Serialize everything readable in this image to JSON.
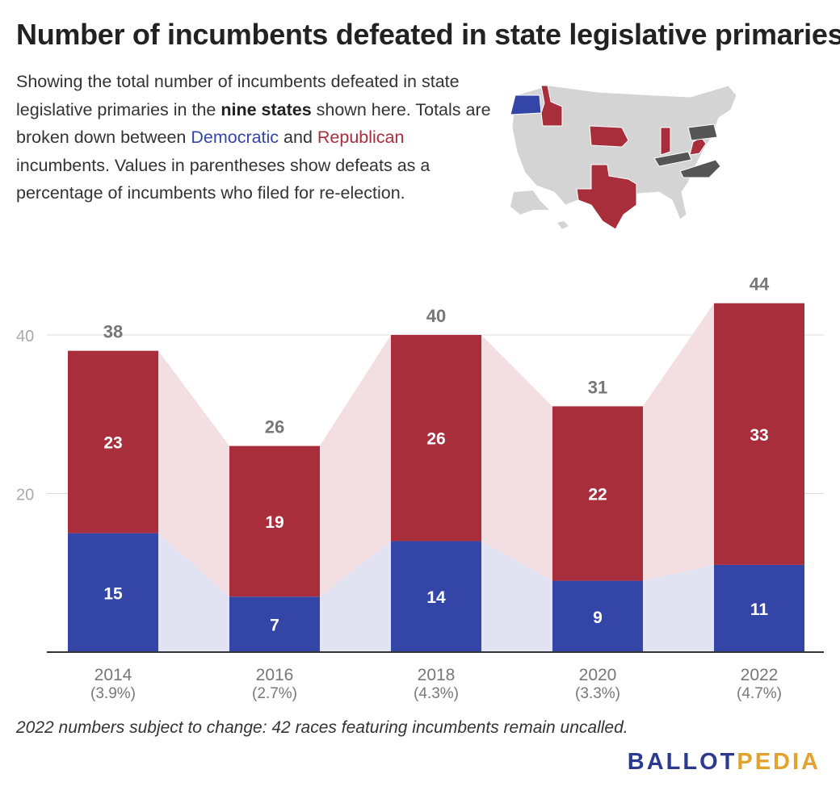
{
  "title": "Number of incumbents defeated in state legislative primaries",
  "description": {
    "p1": "Showing the total number of incumbents defeated in state legislative primaries in the ",
    "bold": "nine states",
    "p2": " shown here. Totals are broken down between ",
    "dem": "Democratic",
    "p3": " and ",
    "rep": "Republican",
    "p4": " incumbents. Values in parentheses show defeats as a percentage of incumbents who filed for re-election."
  },
  "map": {
    "icon": "us-map-icon"
  },
  "colors": {
    "democratic": "#3346a8",
    "republican": "#a92e3c",
    "dem_band": "#e1e3f2",
    "rep_band": "#f3dfe1",
    "grid": "#dddddd",
    "axis": "#333333",
    "label_gray": "#777777",
    "tick_gray": "#aaaaaa"
  },
  "chart_data": {
    "type": "bar",
    "stacked": true,
    "title": "Number of incumbents defeated in state legislative primaries",
    "categories": [
      "2014",
      "2016",
      "2018",
      "2020",
      "2022"
    ],
    "category_sublabels": [
      "(3.9%)",
      "(2.7%)",
      "(4.3%)",
      "(3.3%)",
      "(4.7%)"
    ],
    "series": [
      {
        "name": "Democratic",
        "values": [
          15,
          7,
          14,
          9,
          11
        ]
      },
      {
        "name": "Republican",
        "values": [
          23,
          19,
          26,
          22,
          33
        ]
      }
    ],
    "totals": [
      38,
      26,
      40,
      31,
      44
    ],
    "yticks": [
      20,
      40
    ],
    "ylim": [
      0,
      45
    ],
    "grid": true,
    "xlabel": "",
    "ylabel": ""
  },
  "footnote": "2022 numbers subject to change: 42 races featuring incumbents remain uncalled.",
  "logo": {
    "part1": "BALLOT",
    "part2": "PEDIA"
  }
}
